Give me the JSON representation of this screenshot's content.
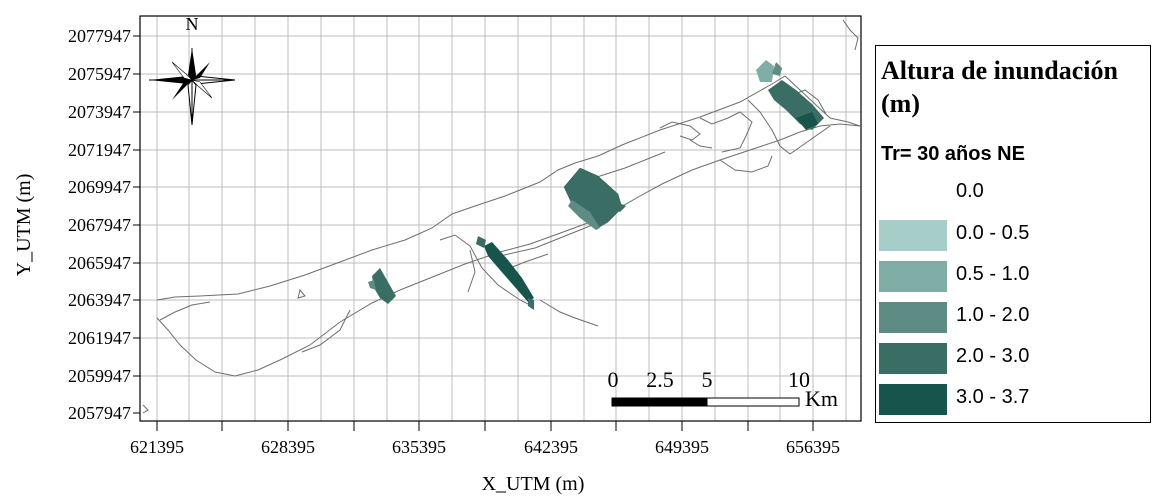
{
  "map": {
    "y_axis_label": "Y_UTM (m)",
    "x_axis_label": "X_UTM (m)",
    "y_ticks": [
      "2077947",
      "2075947",
      "2073947",
      "2071947",
      "2069947",
      "2067947",
      "2065947",
      "2063947",
      "2061947",
      "2059947",
      "2057947"
    ],
    "x_ticks": [
      "621395",
      "628395",
      "635395",
      "642395",
      "649395",
      "656395"
    ],
    "north_label": "N",
    "scale_bar": {
      "labels": [
        "0",
        "2.5",
        "5",
        "10"
      ],
      "unit": "Km"
    }
  },
  "legend": {
    "title": "Altura de inundación (m)",
    "subtitle": "Tr= 30 años NE",
    "items": [
      {
        "label": "0.0",
        "color": "#ffffff"
      },
      {
        "label": "0.0 - 0.5",
        "color": "#a6cdc7"
      },
      {
        "label": "0.5 - 1.0",
        "color": "#80aea6"
      },
      {
        "label": "1.0 - 2.0",
        "color": "#5e8c84"
      },
      {
        "label": "2.0 - 3.0",
        "color": "#3a6d64"
      },
      {
        "label": "3.0 - 3.7",
        "color": "#17544b"
      }
    ]
  }
}
